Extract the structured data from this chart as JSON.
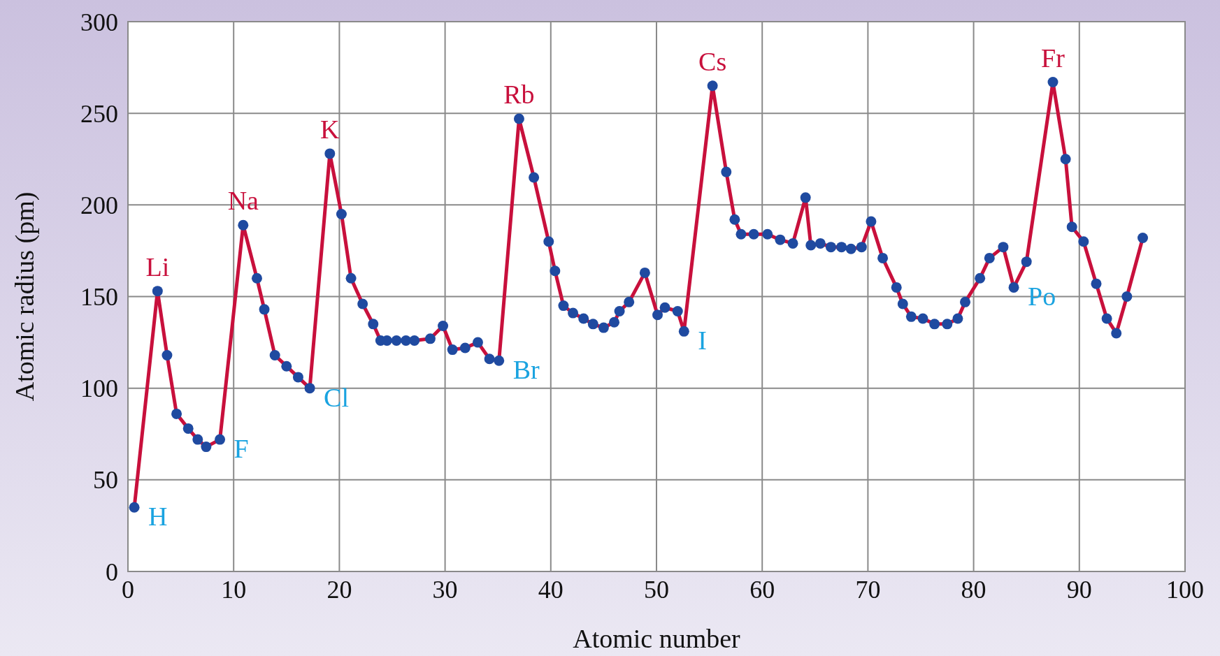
{
  "chart_data": {
    "type": "line",
    "xlabel": "Atomic number",
    "ylabel": "Atomic radius (pm)",
    "xlim": [
      0,
      100
    ],
    "ylim": [
      0,
      300
    ],
    "xticks": [
      0,
      10,
      20,
      30,
      40,
      50,
      60,
      70,
      80,
      90,
      100
    ],
    "yticks": [
      0,
      50,
      100,
      150,
      200,
      250,
      300
    ],
    "grid": true,
    "marker": "circle",
    "line_style": "solid",
    "series": [
      {
        "color": "#c8103c",
        "x": [
          0.6,
          2.8,
          3.7,
          4.6,
          5.7,
          6.6,
          7.4,
          8.7,
          10.9,
          12.2,
          12.9,
          13.9,
          15.0,
          16.1,
          17.2,
          19.1,
          20.2,
          21.1,
          22.2,
          23.2,
          23.9,
          24.5,
          25.4,
          26.3,
          27.1,
          28.6,
          29.8,
          30.7,
          31.9,
          33.1,
          34.2,
          35.1,
          37.0,
          38.4,
          39.8,
          40.4,
          41.2,
          42.1,
          43.1,
          44.0,
          45.0,
          46.0,
          46.5,
          47.4,
          48.9,
          50.1,
          50.8,
          52.0,
          52.6,
          55.3,
          56.6,
          57.4,
          58.0,
          59.2,
          60.5,
          61.7,
          62.9,
          64.1,
          64.6,
          65.5,
          66.5,
          67.5,
          68.4,
          69.4,
          70.3,
          71.4,
          72.7,
          73.3,
          74.1,
          75.2,
          76.3,
          77.5,
          78.5,
          79.2,
          80.6,
          81.5,
          82.8,
          83.8,
          85.0,
          87.5,
          88.7,
          89.3,
          90.4,
          91.6,
          92.6,
          93.5,
          94.5,
          96.0
        ],
        "values": [
          35,
          153,
          118,
          86,
          78,
          72,
          68,
          72,
          189,
          160,
          143,
          118,
          112,
          106,
          100,
          228,
          195,
          160,
          146,
          135,
          126,
          126,
          126,
          126,
          126,
          127,
          134,
          121,
          122,
          125,
          116,
          115,
          247,
          215,
          180,
          164,
          145,
          141,
          138,
          135,
          133,
          136,
          142,
          147,
          163,
          140,
          144,
          142,
          131,
          265,
          218,
          192,
          184,
          184,
          184,
          181,
          179,
          204,
          178,
          179,
          177,
          177,
          176,
          177,
          191,
          171,
          155,
          146,
          139,
          138,
          135,
          135,
          138,
          147,
          160,
          171,
          177,
          155,
          169,
          267,
          225,
          188,
          180,
          157,
          138,
          130,
          150,
          182
        ]
      }
    ],
    "annotations": [
      {
        "text": "H",
        "x": 0.6,
        "y": 35
      },
      {
        "text": "Li",
        "x": 2.8,
        "y": 153
      },
      {
        "text": "F",
        "x": 8.7,
        "y": 72
      },
      {
        "text": "Na",
        "x": 10.9,
        "y": 189
      },
      {
        "text": "Cl",
        "x": 17.2,
        "y": 100
      },
      {
        "text": "K",
        "x": 19.1,
        "y": 228
      },
      {
        "text": "Br",
        "x": 35.1,
        "y": 115
      },
      {
        "text": "Rb",
        "x": 37.0,
        "y": 247
      },
      {
        "text": "I",
        "x": 52.6,
        "y": 131
      },
      {
        "text": "Cs",
        "x": 55.3,
        "y": 265
      },
      {
        "text": "Po",
        "x": 83.8,
        "y": 155
      },
      {
        "text": "Fr",
        "x": 87.5,
        "y": 267
      }
    ]
  }
}
